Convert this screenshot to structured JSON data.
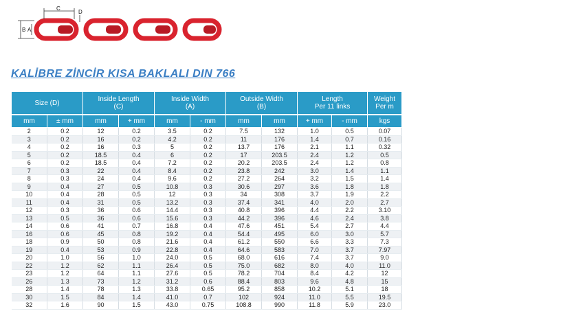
{
  "diagram": {
    "label_c": "C",
    "label_d": "D",
    "label_b": "B",
    "label_a": "A",
    "chain_color": "#d9232e"
  },
  "title": "KALİBRE ZİNCİR KISA BAKLALI DIN 766",
  "table": {
    "groups": [
      {
        "label": "Size (D)",
        "sub": ""
      },
      {
        "label": "Inside Length",
        "sub": "(C)"
      },
      {
        "label": "Inside Width",
        "sub": "(A)"
      },
      {
        "label": "Outside Width",
        "sub": "(B)"
      },
      {
        "label": "Length",
        "sub": "Per 11 links"
      },
      {
        "label": "Weight",
        "sub": "Per m"
      }
    ],
    "units": [
      "mm",
      "± mm",
      "mm",
      "+ mm",
      "mm",
      "- mm",
      "mm",
      "mm",
      "+ mm",
      "- mm",
      "kgs"
    ],
    "rows": [
      [
        "2",
        "0.2",
        "12",
        "0.2",
        "3.5",
        "0.2",
        "7.5",
        "132",
        "1.0",
        "0.5",
        "0.07"
      ],
      [
        "3",
        "0.2",
        "16",
        "0.2",
        "4.2",
        "0.2",
        "11",
        "176",
        "1.4",
        "0.7",
        "0.16"
      ],
      [
        "4",
        "0.2",
        "16",
        "0.3",
        "5",
        "0.2",
        "13.7",
        "176",
        "2.1",
        "1.1",
        "0.32"
      ],
      [
        "5",
        "0.2",
        "18.5",
        "0.4",
        "6",
        "0.2",
        "17",
        "203.5",
        "2.4",
        "1.2",
        "0.5"
      ],
      [
        "6",
        "0.2",
        "18.5",
        "0.4",
        "7.2",
        "0.2",
        "20.2",
        "203.5",
        "2.4",
        "1.2",
        "0.8"
      ],
      [
        "7",
        "0.3",
        "22",
        "0.4",
        "8.4",
        "0.2",
        "23.8",
        "242",
        "3.0",
        "1.4",
        "1.1"
      ],
      [
        "8",
        "0.3",
        "24",
        "0.4",
        "9.6",
        "0.2",
        "27.2",
        "264",
        "3.2",
        "1.5",
        "1.4"
      ],
      [
        "9",
        "0.4",
        "27",
        "0.5",
        "10.8",
        "0.3",
        "30.6",
        "297",
        "3.6",
        "1.8",
        "1.8"
      ],
      [
        "10",
        "0.4",
        "28",
        "0.5",
        "12",
        "0.3",
        "34",
        "308",
        "3.7",
        "1.9",
        "2.2"
      ],
      [
        "11",
        "0.4",
        "31",
        "0.5",
        "13.2",
        "0.3",
        "37.4",
        "341",
        "4.0",
        "2.0",
        "2.7"
      ],
      [
        "12",
        "0.3",
        "36",
        "0.6",
        "14.4",
        "0.3",
        "40.8",
        "396",
        "4.4",
        "2.2",
        "3.10"
      ],
      [
        "13",
        "0.5",
        "36",
        "0.6",
        "15.6",
        "0.3",
        "44.2",
        "396",
        "4.6",
        "2.4",
        "3.8"
      ],
      [
        "14",
        "0.6",
        "41",
        "0.7",
        "16.8",
        "0.4",
        "47.6",
        "451",
        "5.4",
        "2.7",
        "4.4"
      ],
      [
        "16",
        "0.6",
        "45",
        "0.8",
        "19.2",
        "0.4",
        "54.4",
        "495",
        "6.0",
        "3.0",
        "5.7"
      ],
      [
        "18",
        "0.9",
        "50",
        "0.8",
        "21.6",
        "0.4",
        "61.2",
        "550",
        "6.6",
        "3.3",
        "7.3"
      ],
      [
        "19",
        "0.4",
        "53",
        "0.9",
        "22.8",
        "0.4",
        "64.6",
        "583",
        "7.0",
        "3.7",
        "7.97"
      ],
      [
        "20",
        "1.0",
        "56",
        "1.0",
        "24.0",
        "0.5",
        "68.0",
        "616",
        "7.4",
        "3.7",
        "9.0"
      ],
      [
        "22",
        "1.2",
        "62",
        "1.1",
        "26.4",
        "0.5",
        "75.0",
        "682",
        "8.0",
        "4.0",
        "11.0"
      ],
      [
        "23",
        "1.2",
        "64",
        "1.1",
        "27.6",
        "0.5",
        "78.2",
        "704",
        "8.4",
        "4.2",
        "12"
      ],
      [
        "26",
        "1.3",
        "73",
        "1.2",
        "31.2",
        "0.6",
        "88.4",
        "803",
        "9.6",
        "4.8",
        "15"
      ],
      [
        "28",
        "1.4",
        "78",
        "1.3",
        "33.8",
        "0.65",
        "95.2",
        "858",
        "10.2",
        "5.1",
        "18"
      ],
      [
        "30",
        "1.5",
        "84",
        "1.4",
        "41.0",
        "0.7",
        "102",
        "924",
        "11.0",
        "5.5",
        "19.5"
      ],
      [
        "32",
        "1.6",
        "90",
        "1.5",
        "43.0",
        "0.75",
        "108.8",
        "990",
        "11.8",
        "5.9",
        "23.0"
      ]
    ]
  }
}
